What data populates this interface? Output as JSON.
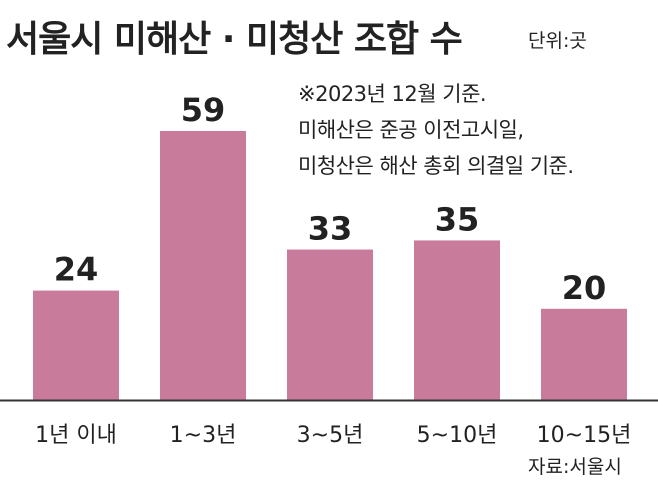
{
  "title": "서울시 미해산 · 미청산 조합 수",
  "unit": "단위:곳",
  "notes": [
    "※2023년 12월 기준.",
    "미해산은 준공 이전고시일,",
    "미청산은 해산 총회 의결일 기준."
  ],
  "source": "자료:서울시",
  "colors": {
    "bar": "#c97b9c",
    "axis": "#333333",
    "text": "#222222"
  },
  "chart_data": {
    "type": "bar",
    "categories": [
      "1년 이내",
      "1~3년",
      "3~5년",
      "5~10년",
      "10~15년"
    ],
    "values": [
      24,
      59,
      33,
      35,
      20
    ],
    "title": "서울시 미해산 · 미청산 조합 수",
    "xlabel": "",
    "ylabel": "",
    "ylim": [
      0,
      59
    ],
    "grid": false,
    "legend": "none"
  }
}
